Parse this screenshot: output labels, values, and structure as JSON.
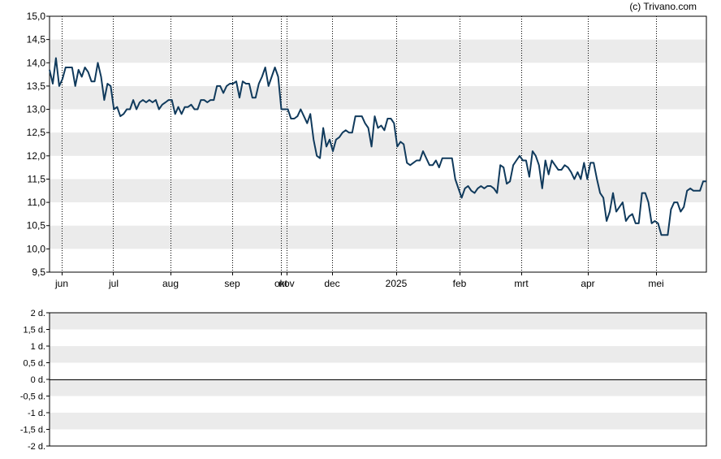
{
  "credit": "(c) Trivano.com",
  "chart_data": [
    {
      "type": "line",
      "series": [
        {
          "values": [
            13.85,
            13.55,
            14.1,
            13.5,
            13.65,
            13.9,
            13.9,
            13.9,
            13.5,
            13.85,
            13.7,
            13.9,
            13.8,
            13.6,
            13.6,
            14.0,
            13.7,
            13.2,
            13.55,
            13.5,
            13.0,
            13.05,
            12.85,
            12.9,
            13.0,
            13.0,
            13.2,
            13.0,
            13.15,
            13.2,
            13.15,
            13.2,
            13.15,
            13.2,
            13.0,
            13.1,
            13.15,
            13.2,
            13.2,
            12.9,
            13.05,
            12.9,
            13.05,
            13.05,
            13.1,
            13.0,
            13.0,
            13.2,
            13.2,
            13.15,
            13.2,
            13.2,
            13.5,
            13.5,
            13.35,
            13.5,
            13.55,
            13.55,
            13.6,
            13.25,
            13.6,
            13.55,
            13.55,
            13.25,
            13.25,
            13.55,
            13.7,
            13.9,
            13.5,
            13.7,
            13.9,
            13.7,
            13.0,
            13.0,
            13.0,
            12.8,
            12.8,
            12.85,
            13.0,
            12.85,
            12.7,
            12.9,
            12.35,
            12.0,
            11.95,
            12.6,
            12.2,
            12.35,
            12.1,
            12.35,
            12.4,
            12.5,
            12.55,
            12.5,
            12.5,
            12.85,
            12.85,
            12.85,
            12.7,
            12.6,
            12.2,
            12.85,
            12.6,
            12.65,
            12.55,
            12.8,
            12.8,
            12.7,
            12.2,
            12.3,
            12.25,
            11.85,
            11.8,
            11.85,
            11.9,
            11.9,
            12.1,
            11.95,
            11.8,
            11.8,
            11.9,
            11.75,
            11.95,
            11.95,
            11.95,
            11.95,
            11.5,
            11.3,
            11.1,
            11.3,
            11.35,
            11.25,
            11.2,
            11.3,
            11.35,
            11.3,
            11.35,
            11.35,
            11.3,
            11.2,
            11.8,
            11.75,
            11.4,
            11.45,
            11.8,
            11.9,
            12.0,
            11.9,
            11.9,
            11.55,
            12.1,
            12.0,
            11.8,
            11.3,
            11.9,
            11.6,
            11.9,
            11.8,
            11.7,
            11.7,
            11.8,
            11.75,
            11.65,
            11.5,
            11.65,
            11.5,
            11.85,
            11.5,
            11.85,
            11.85,
            11.5,
            11.2,
            11.1,
            10.6,
            10.8,
            11.2,
            10.8,
            10.9,
            11.0,
            10.6,
            10.7,
            10.75,
            10.55,
            10.55,
            11.2,
            11.2,
            11.0,
            10.55,
            10.6,
            10.55,
            10.3,
            10.3,
            10.3,
            10.85,
            11.0,
            11.0,
            10.8,
            10.9,
            11.25,
            11.3,
            11.25,
            11.25,
            11.25,
            11.45,
            11.45
          ]
        }
      ],
      "x_labels": [
        "jun",
        "jul",
        "aug",
        "sep",
        "okt",
        "nov",
        "dec",
        "2025",
        "feb",
        "mrt",
        "apr",
        "mei"
      ],
      "y_ticks": [
        "15,0",
        "14,5",
        "14,0",
        "13,5",
        "13,0",
        "12,5",
        "12,0",
        "11,5",
        "11,0",
        "10,5",
        "10,0",
        "9,5"
      ],
      "ylim": [
        9.5,
        15.0
      ],
      "line_color": "#103a5c",
      "band_color": "#ebebeb",
      "grid": "dotted vertical at month starts"
    },
    {
      "type": "line",
      "series": [],
      "y_ticks": [
        "2 d.",
        "1,5 d.",
        "1 d.",
        "0,5 d.",
        "0 d.",
        "-0,5 d.",
        "-1 d.",
        "-1,5 d.",
        "-2 d."
      ],
      "ylim": [
        -2,
        2
      ],
      "band_color": "#ebebeb"
    }
  ]
}
